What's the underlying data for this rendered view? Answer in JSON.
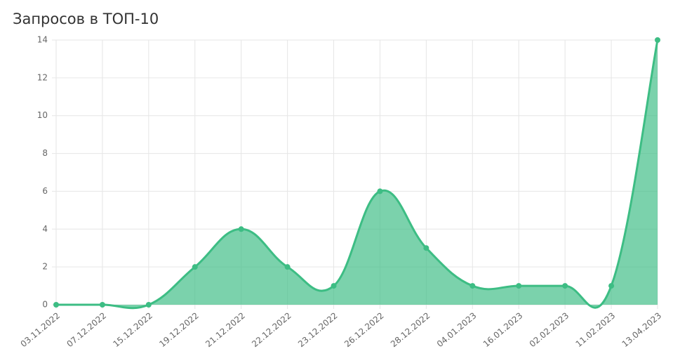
{
  "chart_data": {
    "type": "area",
    "title": "Запросов в ТОП-10",
    "categories": [
      "03.11.2022",
      "07.12.2022",
      "15.12.2022",
      "19.12.2022",
      "21.12.2022",
      "22.12.2022",
      "23.12.2022",
      "26.12.2022",
      "28.12.2022",
      "04.01.2023",
      "16.01.2023",
      "02.02.2023",
      "11.02.2023",
      "13.04.2023"
    ],
    "values": [
      0,
      0,
      0,
      2,
      4,
      2,
      1,
      6,
      3,
      1,
      1,
      1,
      1,
      14
    ],
    "color": "#3dbd84",
    "ylim": [
      0,
      14
    ],
    "yticks": [
      0,
      2,
      4,
      6,
      8,
      10,
      12,
      14
    ],
    "grid": true
  }
}
